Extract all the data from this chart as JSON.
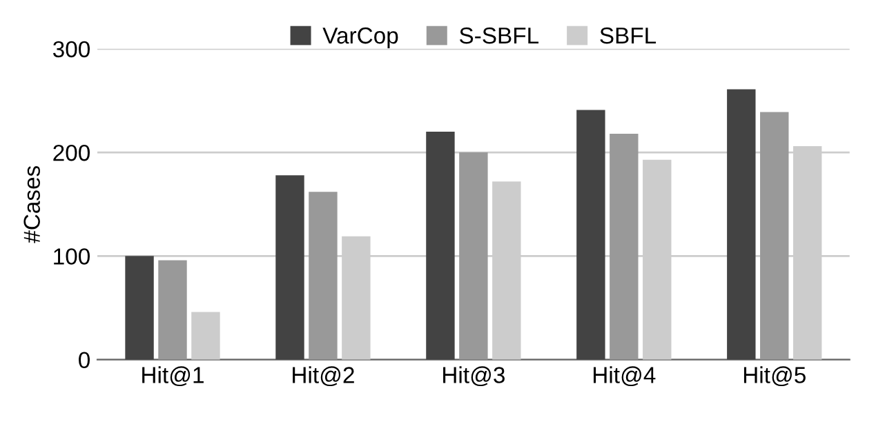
{
  "chart_data": {
    "type": "bar",
    "ylabel": "#Cases",
    "categories": [
      "Hit@1",
      "Hit@2",
      "Hit@3",
      "Hit@4",
      "Hit@5"
    ],
    "series": [
      {
        "name": "VarCop",
        "color": "#434343",
        "values": [
          100,
          178,
          220,
          241,
          261
        ]
      },
      {
        "name": "S-SBFL",
        "color": "#999999",
        "values": [
          96,
          162,
          200,
          218,
          239
        ]
      },
      {
        "name": "SBFL",
        "color": "#cccccc",
        "values": [
          46,
          119,
          172,
          193,
          206
        ]
      }
    ],
    "ylim": [
      0,
      300
    ],
    "yticks": [
      0,
      100,
      200,
      300
    ],
    "grid": "y",
    "legend": "top"
  }
}
